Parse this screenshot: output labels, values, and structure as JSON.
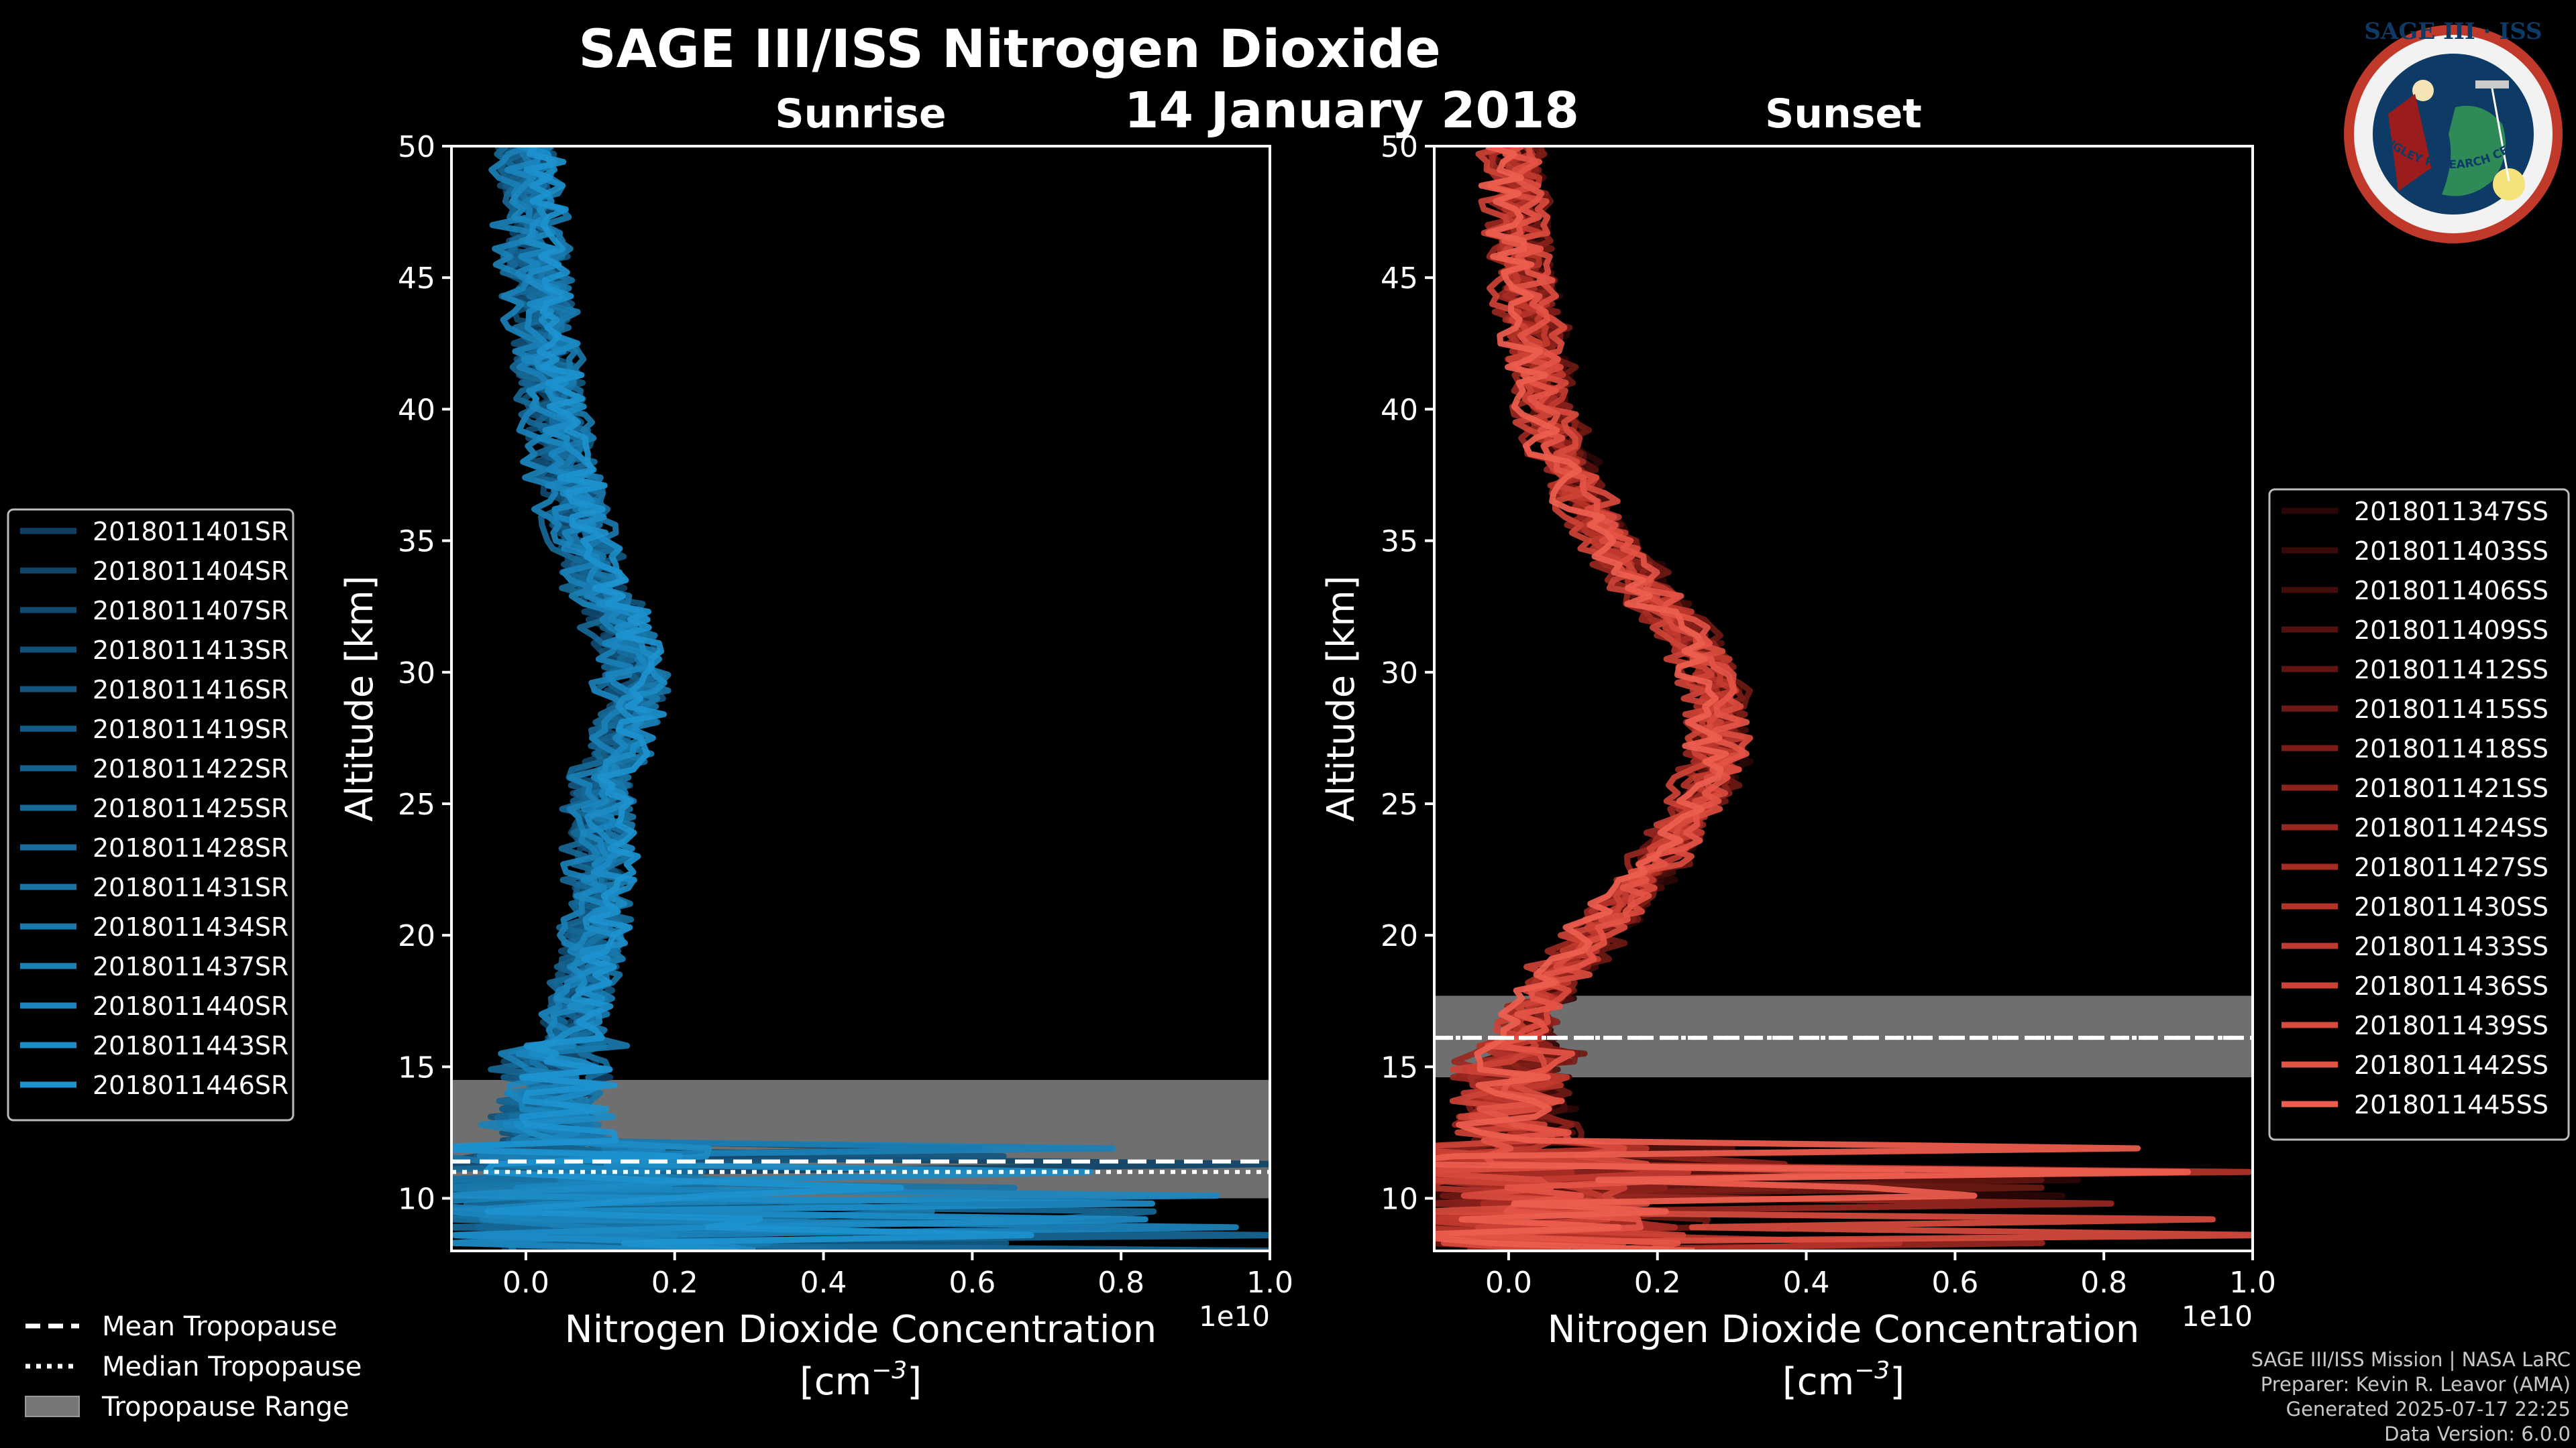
{
  "figure": {
    "title": "SAGE III/ISS Nitrogen Dioxide",
    "date": "14 January 2018",
    "logo": {
      "top_text": "SAGE III · ISS",
      "ring_text": "BALL · NASA LANGLEY RESEARCH CENTER · TAS-I · ESA",
      "colors": {
        "outer": "#c0392b",
        "inner": "#0e3a66",
        "ring": "#f2f2f2"
      }
    },
    "credits": [
      "SAGE III/ISS Mission | NASA LaRC",
      "Preparer: Kevin R. Leavor (AMA)",
      "Generated 2025-07-17 22:25",
      "Data Version: 6.0.0"
    ],
    "shared_legend": [
      {
        "label": "Mean Tropopause",
        "style": "dashed"
      },
      {
        "label": "Median Tropopause",
        "style": "dotted"
      },
      {
        "label": "Tropopause Range",
        "style": "patch"
      }
    ]
  },
  "chart_data": [
    {
      "type": "line",
      "title": "Sunrise",
      "xlabel": "Nitrogen Dioxide Concentration",
      "xunit": "[cm",
      "xunit_exp": "−3",
      "xunit_close": "]",
      "x_offset_label": "1e10",
      "ylabel": "Altitude [km]",
      "xlim": [
        -0.1,
        1.0
      ],
      "ylim": [
        8,
        50
      ],
      "xticks": [
        0.0,
        0.2,
        0.4,
        0.6,
        0.8,
        1.0
      ],
      "xtick_labels": [
        "0.0",
        "0.2",
        "0.4",
        "0.6",
        "0.8",
        "1.0"
      ],
      "yticks": [
        10,
        15,
        20,
        25,
        30,
        35,
        40,
        45,
        50
      ],
      "ytick_labels": [
        "10",
        "15",
        "20",
        "25",
        "30",
        "35",
        "40",
        "45",
        "50"
      ],
      "grid": false,
      "legend_position": "left",
      "tropopause": {
        "mean_km": 11.4,
        "median_km": 11.0,
        "range_km": [
          10.0,
          14.5
        ]
      },
      "profile_shape": {
        "altitude_km": [
          8,
          9,
          10,
          11,
          12,
          13,
          14,
          15,
          16,
          17,
          18,
          19,
          20,
          21,
          22,
          23,
          24,
          25,
          26,
          27,
          28,
          29,
          30,
          31,
          32,
          33,
          34,
          35,
          36,
          37,
          38,
          39,
          40,
          41,
          42,
          43,
          44,
          45,
          46,
          47,
          48,
          49,
          50
        ],
        "no2_1e10": [
          0.12,
          0.09,
          0.06,
          0.04,
          0.03,
          0.03,
          0.03,
          0.04,
          0.05,
          0.06,
          0.07,
          0.08,
          0.09,
          0.095,
          0.1,
          0.1,
          0.095,
          0.095,
          0.1,
          0.12,
          0.13,
          0.14,
          0.14,
          0.13,
          0.12,
          0.1,
          0.09,
          0.075,
          0.065,
          0.055,
          0.045,
          0.04,
          0.035,
          0.03,
          0.025,
          0.02,
          0.015,
          0.01,
          0.01,
          0.005,
          0.005,
          0.0,
          0.0
        ]
      },
      "series": [
        {
          "name": "2018011401SR",
          "color": "#0f3f63"
        },
        {
          "name": "2018011404SR",
          "color": "#104468"
        },
        {
          "name": "2018011407SR",
          "color": "#114a70"
        },
        {
          "name": "2018011413SR",
          "color": "#125077"
        },
        {
          "name": "2018011416SR",
          "color": "#13567f"
        },
        {
          "name": "2018011419SR",
          "color": "#145c87"
        },
        {
          "name": "2018011422SR",
          "color": "#15628f"
        },
        {
          "name": "2018011425SR",
          "color": "#166896"
        },
        {
          "name": "2018011428SR",
          "color": "#176e9e"
        },
        {
          "name": "2018011431SR",
          "color": "#1874a6"
        },
        {
          "name": "2018011434SR",
          "color": "#197aae"
        },
        {
          "name": "2018011437SR",
          "color": "#1a80b6"
        },
        {
          "name": "2018011440SR",
          "color": "#1b86be"
        },
        {
          "name": "2018011443SR",
          "color": "#1c8cc6"
        },
        {
          "name": "2018011446SR",
          "color": "#1d93cf"
        }
      ]
    },
    {
      "type": "line",
      "title": "Sunset",
      "xlabel": "Nitrogen Dioxide Concentration",
      "xunit": "[cm",
      "xunit_exp": "−3",
      "xunit_close": "]",
      "x_offset_label": "1e10",
      "ylabel": "Altitude [km]",
      "xlim": [
        -0.1,
        1.0
      ],
      "ylim": [
        8,
        50
      ],
      "xticks": [
        0.0,
        0.2,
        0.4,
        0.6,
        0.8,
        1.0
      ],
      "xtick_labels": [
        "0.0",
        "0.2",
        "0.4",
        "0.6",
        "0.8",
        "1.0"
      ],
      "yticks": [
        10,
        15,
        20,
        25,
        30,
        35,
        40,
        45,
        50
      ],
      "ytick_labels": [
        "10",
        "15",
        "20",
        "25",
        "30",
        "35",
        "40",
        "45",
        "50"
      ],
      "grid": false,
      "legend_position": "right",
      "tropopause": {
        "mean_km": 16.1,
        "median_km": 16.1,
        "range_km": [
          14.6,
          17.7
        ]
      },
      "profile_shape": {
        "altitude_km": [
          8,
          9,
          10,
          11,
          12,
          13,
          14,
          15,
          16,
          17,
          18,
          19,
          20,
          21,
          22,
          23,
          24,
          25,
          26,
          27,
          28,
          29,
          30,
          31,
          32,
          33,
          34,
          35,
          36,
          37,
          38,
          39,
          40,
          41,
          42,
          43,
          44,
          45,
          46,
          47,
          48,
          49,
          50
        ],
        "no2_1e10": [
          0.05,
          0.04,
          0.03,
          0.02,
          0.01,
          0.0,
          0.0,
          0.01,
          0.02,
          0.03,
          0.05,
          0.08,
          0.11,
          0.14,
          0.17,
          0.2,
          0.23,
          0.25,
          0.27,
          0.28,
          0.28,
          0.28,
          0.27,
          0.25,
          0.22,
          0.19,
          0.16,
          0.13,
          0.11,
          0.09,
          0.075,
          0.06,
          0.05,
          0.04,
          0.035,
          0.03,
          0.025,
          0.02,
          0.015,
          0.01,
          0.01,
          0.005,
          0.005
        ]
      },
      "series": [
        {
          "name": "2018011347SS",
          "color": "#2a0606"
        },
        {
          "name": "2018011403SS",
          "color": "#370a09"
        },
        {
          "name": "2018011406SS",
          "color": "#440d0b"
        },
        {
          "name": "2018011409SS",
          "color": "#52110e"
        },
        {
          "name": "2018011412SS",
          "color": "#601511"
        },
        {
          "name": "2018011415SS",
          "color": "#6e1914"
        },
        {
          "name": "2018011418SS",
          "color": "#7d1d17"
        },
        {
          "name": "2018011421SS",
          "color": "#8b221b"
        },
        {
          "name": "2018011424SS",
          "color": "#99271f"
        },
        {
          "name": "2018011427SS",
          "color": "#a72d24"
        },
        {
          "name": "2018011430SS",
          "color": "#b43329"
        },
        {
          "name": "2018011433SS",
          "color": "#c13a2f"
        },
        {
          "name": "2018011436SS",
          "color": "#cd4236"
        },
        {
          "name": "2018011439SS",
          "color": "#d94b3e"
        },
        {
          "name": "2018011442SS",
          "color": "#e45446"
        },
        {
          "name": "2018011445SS",
          "color": "#ee5e4f"
        }
      ]
    }
  ]
}
